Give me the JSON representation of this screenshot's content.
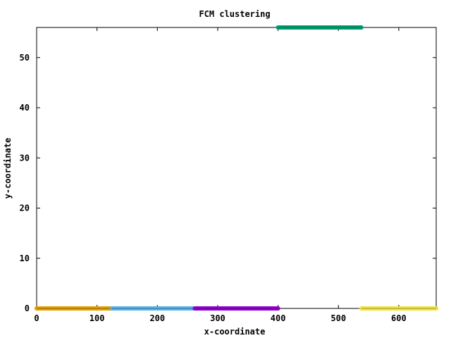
{
  "chart_data": {
    "type": "scatter",
    "title": "FCM clustering",
    "xlabel": "x-coordinate",
    "ylabel": "y-coordinate",
    "xlim": [
      0,
      662
    ],
    "ylim": [
      0,
      56
    ],
    "xticks": [
      0,
      100,
      200,
      300,
      400,
      500,
      600
    ],
    "yticks": [
      0,
      10,
      20,
      30,
      40,
      50
    ],
    "grid": false,
    "legend": "none",
    "series": [
      {
        "color": "#e69f00",
        "x_range": [
          0,
          125
        ],
        "y": 0
      },
      {
        "color": "#56b4e9",
        "x_range": [
          125,
          262
        ],
        "y": 0
      },
      {
        "color": "#9400d3",
        "x_range": [
          262,
          400
        ],
        "y": 0
      },
      {
        "color": "#009e73",
        "x_range": [
          400,
          538
        ],
        "y": 56
      },
      {
        "color": "#f0e442",
        "x_range": [
          538,
          662
        ],
        "y": 0
      }
    ]
  }
}
